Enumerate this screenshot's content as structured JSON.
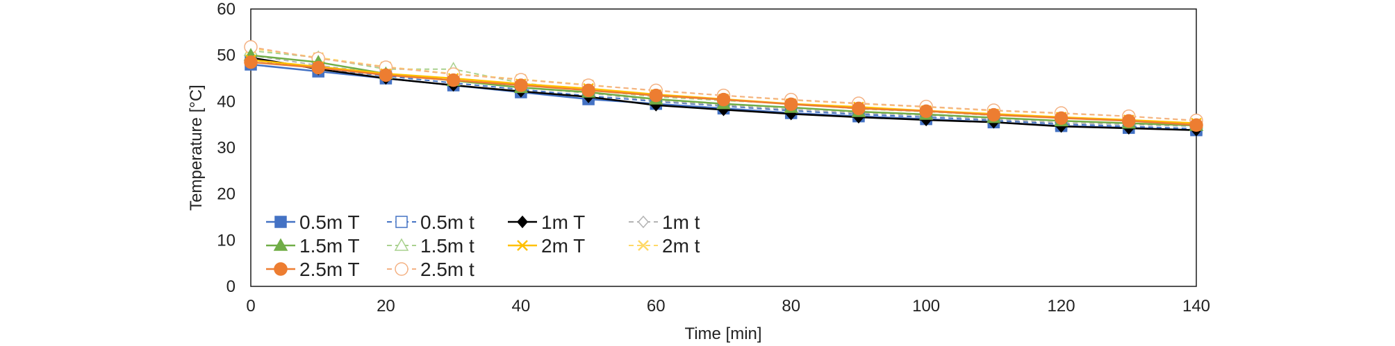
{
  "chart_data": {
    "type": "line",
    "title": "",
    "xlabel": "Time [min]",
    "ylabel": "Temperature [°C]",
    "xlim": [
      0,
      140
    ],
    "ylim": [
      0,
      60
    ],
    "x_ticks": [
      0,
      20,
      40,
      60,
      80,
      100,
      120,
      140
    ],
    "y_ticks": [
      0,
      10,
      20,
      30,
      40,
      50,
      60
    ],
    "x_tick_labels": [
      "0",
      "20",
      "40",
      "60",
      "80",
      "100",
      "120",
      "140"
    ],
    "y_tick_labels": [
      "0",
      "10",
      "20",
      "30",
      "40",
      "50",
      "60"
    ],
    "grid": false,
    "legend_position": "lower-left inside",
    "x": [
      0,
      10,
      20,
      30,
      40,
      50,
      60,
      70,
      80,
      90,
      100,
      110,
      120,
      130,
      140
    ],
    "series": [
      {
        "name": "0.5m T",
        "color": "#4472c4",
        "marker": "square",
        "filled": true,
        "dashed": false,
        "values": [
          48.0,
          46.5,
          45.0,
          43.5,
          42.0,
          40.5,
          39.5,
          38.5,
          37.5,
          36.8,
          36.2,
          35.5,
          34.7,
          34.3,
          33.8
        ]
      },
      {
        "name": "0.5m t",
        "color": "#4472c4",
        "marker": "square",
        "filled": false,
        "dashed": true,
        "values": [
          49.0,
          47.2,
          45.5,
          44.0,
          42.6,
          41.2,
          40.0,
          39.0,
          38.0,
          37.2,
          36.6,
          35.9,
          35.1,
          34.6,
          34.1
        ]
      },
      {
        "name": "1m T",
        "color": "#000000",
        "marker": "diamond",
        "filled": true,
        "dashed": false,
        "values": [
          49.5,
          47.0,
          45.0,
          43.5,
          42.2,
          41.0,
          39.2,
          38.2,
          37.3,
          36.6,
          36.0,
          35.5,
          34.6,
          34.2,
          33.8
        ]
      },
      {
        "name": "1m t",
        "color": "#b3b3b3",
        "marker": "diamond",
        "filled": false,
        "dashed": true,
        "values": [
          50.0,
          47.8,
          46.0,
          44.5,
          43.0,
          41.8,
          40.2,
          39.2,
          38.3,
          37.5,
          37.0,
          36.2,
          35.4,
          35.0,
          34.6
        ]
      },
      {
        "name": "1.5m T",
        "color": "#70ad47",
        "marker": "triangle",
        "filled": true,
        "dashed": false,
        "values": [
          50.0,
          48.5,
          46.0,
          44.5,
          43.0,
          42.0,
          40.5,
          39.5,
          38.7,
          37.8,
          37.2,
          36.5,
          35.8,
          35.3,
          34.8
        ]
      },
      {
        "name": "1.5m t",
        "color": "#a9d18e",
        "marker": "triangle",
        "filled": false,
        "dashed": true,
        "values": [
          51.0,
          49.5,
          47.0,
          47.0,
          44.0,
          42.5,
          41.0,
          40.2,
          39.5,
          38.4,
          37.8,
          37.0,
          36.5,
          35.8,
          35.3
        ]
      },
      {
        "name": "2m T",
        "color": "#ffc000",
        "marker": "x",
        "filled": true,
        "dashed": false,
        "values": [
          49.0,
          47.5,
          46.0,
          45.0,
          43.8,
          42.8,
          41.5,
          40.5,
          39.5,
          38.8,
          38.0,
          37.3,
          36.6,
          36.0,
          35.3
        ]
      },
      {
        "name": "2m t",
        "color": "#ffd966",
        "marker": "x",
        "filled": false,
        "dashed": true,
        "values": [
          51.5,
          49.5,
          47.5,
          46.0,
          44.8,
          43.6,
          42.3,
          41.3,
          40.3,
          39.5,
          38.8,
          38.0,
          37.4,
          36.8,
          35.8
        ]
      },
      {
        "name": "2.5m T",
        "color": "#ed7d31",
        "marker": "circle",
        "filled": true,
        "dashed": false,
        "values": [
          48.5,
          47.3,
          45.7,
          44.6,
          43.5,
          42.4,
          41.3,
          40.4,
          39.4,
          38.5,
          37.9,
          37.1,
          36.4,
          35.8,
          34.9
        ]
      },
      {
        "name": "2.5m t",
        "color": "#f4b183",
        "marker": "circle",
        "filled": false,
        "dashed": true,
        "values": [
          51.8,
          49.3,
          47.4,
          45.9,
          44.7,
          43.5,
          42.4,
          41.3,
          40.4,
          39.6,
          38.9,
          38.1,
          37.5,
          36.8,
          35.9
        ]
      }
    ]
  }
}
